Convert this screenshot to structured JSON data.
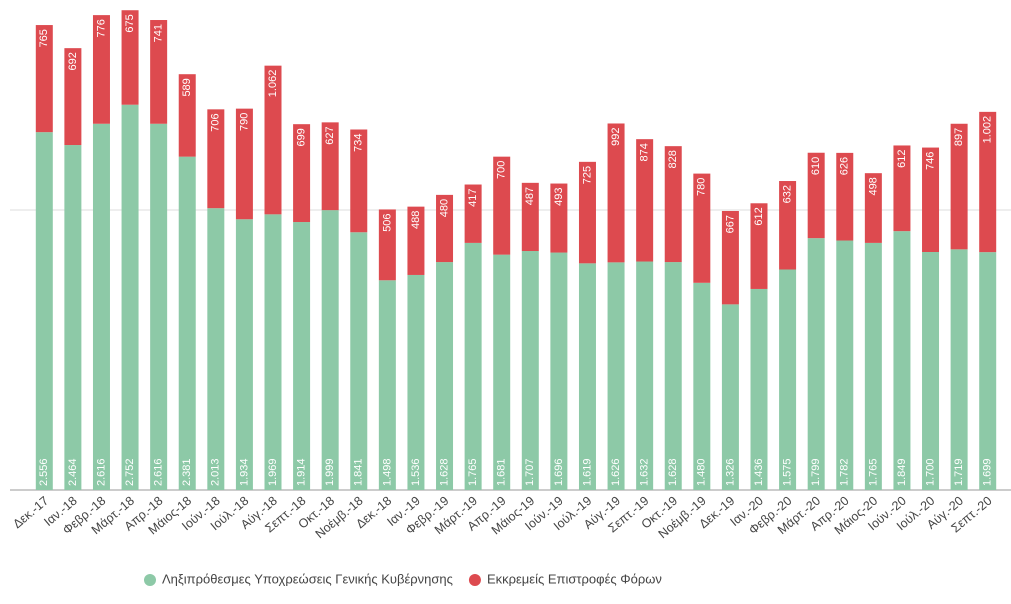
{
  "chart_data": {
    "type": "stacked-bar",
    "categories": [
      "Δεκ.-17",
      "Ιαν.-18",
      "Φεβρ.-18",
      "Μάρτ.-18",
      "Απρ.-18",
      "Μάιος-18",
      "Ιούν.-18",
      "Ιούλ.-18",
      "Αύγ.-18",
      "Σεπτ.-18",
      "Οκτ.-18",
      "Νοέμβ.-18",
      "Δεκ.-18",
      "Ιαν.-19",
      "Φεβρ.-19",
      "Μάρτ.-19",
      "Απρ.-19",
      "Μάιος-19",
      "Ιούν.-19",
      "Ιούλ.-19",
      "Αύγ.-19",
      "Σεπτ.-19",
      "Οκτ.-19",
      "Νοέμβ.-19",
      "Δεκ.-19",
      "Ιαν.-20",
      "Φεβρ.-20",
      "Μάρτ.-20",
      "Απρ.-20",
      "Μάιος-20",
      "Ιούν.-20",
      "Ιούλ.-20",
      "Αύγ.-20",
      "Σεπτ.-20"
    ],
    "series": [
      {
        "name": "Ληξιπρόθεσμες Υποχρεώσεις Γενικής Κυβέρνησης",
        "color": "#8dc9a7",
        "values": [
          2556,
          2464,
          2616,
          2752,
          2616,
          2381,
          2013,
          1934,
          1969,
          1914,
          1999,
          1841,
          1498,
          1536,
          1628,
          1765,
          1681,
          1707,
          1696,
          1619,
          1626,
          1632,
          1628,
          1480,
          1326,
          1436,
          1575,
          1799,
          1782,
          1765,
          1849,
          1700,
          1719,
          1699
        ],
        "value_labels": [
          "2.556",
          "2.464",
          "2.616",
          "2.752",
          "2.616",
          "2.381",
          "2.013",
          "1.934",
          "1.969",
          "1.914",
          "1.999",
          "1.841",
          "1.498",
          "1.536",
          "1.628",
          "1.765",
          "1.681",
          "1.707",
          "1.696",
          "1.619",
          "1.626",
          "1.632",
          "1.628",
          "1.480",
          "1.326",
          "1.436",
          "1.575",
          "1.799",
          "1.782",
          "1.765",
          "1.849",
          "1.700",
          "1.719",
          "1.699"
        ]
      },
      {
        "name": "Εκκρεμείς Επιστροφές Φόρων",
        "color": "#dd4a4f",
        "values": [
          765,
          692,
          776,
          675,
          741,
          589,
          706,
          790,
          1062,
          699,
          627,
          734,
          506,
          488,
          480,
          417,
          700,
          487,
          493,
          725,
          992,
          874,
          828,
          780,
          667,
          612,
          632,
          610,
          626,
          498,
          612,
          746,
          897,
          1002
        ],
        "value_labels": [
          "765",
          "692",
          "776",
          "675",
          "741",
          "589",
          "706",
          "790",
          "1.062",
          "699",
          "627",
          "734",
          "506",
          "488",
          "480",
          "417",
          "700",
          "487",
          "493",
          "725",
          "992",
          "874",
          "828",
          "780",
          "667",
          "612",
          "632",
          "610",
          "626",
          "498",
          "612",
          "746",
          "897",
          "1.002"
        ]
      }
    ],
    "ylim": [
      0,
      3500
    ],
    "yticks": [
      0,
      2000
    ],
    "grid": true
  }
}
